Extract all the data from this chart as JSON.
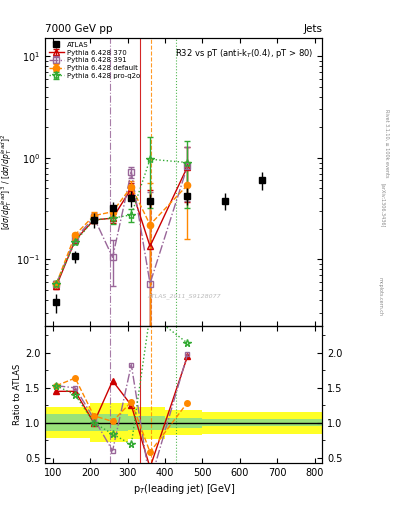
{
  "title_top_left": "7000 GeV pp",
  "title_top_right": "Jets",
  "plot_title": "R32 vs pT (anti-k_{T}(0.4), pT > 80)",
  "watermark": "ATLAS_2011_S9128077",
  "atlas_x": [
    110,
    160,
    210,
    260,
    310,
    360,
    460,
    560,
    660
  ],
  "atlas_y": [
    0.038,
    0.107,
    0.245,
    0.32,
    0.4,
    0.38,
    0.42,
    0.38,
    0.6
  ],
  "atlas_yerr": [
    0.008,
    0.015,
    0.04,
    0.05,
    0.07,
    0.06,
    0.08,
    0.07,
    0.12
  ],
  "py370_x": [
    110,
    160,
    210,
    260,
    310,
    360,
    460
  ],
  "py370_y": [
    0.055,
    0.155,
    0.245,
    0.255,
    0.5,
    0.135,
    0.82
  ],
  "py370_yerr": [
    0.004,
    0.008,
    0.015,
    0.025,
    0.06,
    0.35,
    0.45
  ],
  "py391_x": [
    110,
    160,
    210,
    260,
    310,
    360,
    460
  ],
  "py391_y": [
    0.058,
    0.16,
    0.26,
    0.105,
    0.73,
    0.058,
    0.83
  ],
  "py391_yerr": [
    0.004,
    0.012,
    0.025,
    0.05,
    0.09,
    0.4,
    0.45
  ],
  "pydef_x": [
    110,
    160,
    210,
    260,
    310,
    360,
    460
  ],
  "pydef_y": [
    0.058,
    0.175,
    0.27,
    0.295,
    0.52,
    0.22,
    0.54
  ],
  "pydef_yerr": [
    0.004,
    0.008,
    0.02,
    0.03,
    0.07,
    0.35,
    0.38
  ],
  "pyproq2o_x": [
    110,
    160,
    210,
    260,
    310,
    360,
    460
  ],
  "pyproq2o_y": [
    0.058,
    0.15,
    0.245,
    0.255,
    0.275,
    0.97,
    0.9
  ],
  "pyproq2o_yerr": [
    0.004,
    0.008,
    0.018,
    0.03,
    0.04,
    0.65,
    0.58
  ],
  "ratio_band_edges": [
    80,
    200,
    300,
    400,
    500,
    820
  ],
  "ratio_yellow_lo": [
    0.78,
    0.72,
    0.77,
    0.82,
    0.84,
    0.84
  ],
  "ratio_yellow_hi": [
    1.22,
    1.28,
    1.23,
    1.18,
    1.16,
    1.16
  ],
  "ratio_green_lo": [
    0.88,
    0.88,
    0.9,
    0.93,
    0.95,
    0.95
  ],
  "ratio_green_hi": [
    1.12,
    1.12,
    1.1,
    1.07,
    1.05,
    1.05
  ],
  "ratio_py370_x": [
    110,
    160,
    210,
    260,
    310,
    360,
    460
  ],
  "ratio_py370_y": [
    1.45,
    1.45,
    1.0,
    1.6,
    1.25,
    0.36,
    1.95
  ],
  "ratio_py391_x": [
    110,
    160,
    210,
    260,
    310,
    360,
    460
  ],
  "ratio_py391_y": [
    1.53,
    1.5,
    1.06,
    0.6,
    1.83,
    0.15,
    1.98
  ],
  "ratio_pydef_x": [
    110,
    160,
    210,
    260,
    310,
    360,
    460
  ],
  "ratio_pydef_y": [
    1.53,
    1.64,
    1.1,
    1.02,
    1.3,
    0.58,
    1.29
  ],
  "ratio_pyproq2o_x": [
    110,
    160,
    210,
    260,
    310,
    360,
    460
  ],
  "ratio_pyproq2o_y": [
    1.53,
    1.4,
    1.0,
    0.84,
    0.69,
    2.55,
    2.14
  ],
  "xlim": [
    80,
    820
  ],
  "ylim_main": [
    0.022,
    15.0
  ],
  "ylim_ratio": [
    0.42,
    2.38
  ],
  "color_py370": "#cc0000",
  "color_py391": "#996699",
  "color_pydef": "#ff8800",
  "color_pyproq2o": "#33aa33",
  "color_atlas": "#000000",
  "vline_py391_x": 252,
  "vline_py370_x": 333,
  "vline_pydef_x": 363,
  "vline_pyproq2o_x": 430
}
